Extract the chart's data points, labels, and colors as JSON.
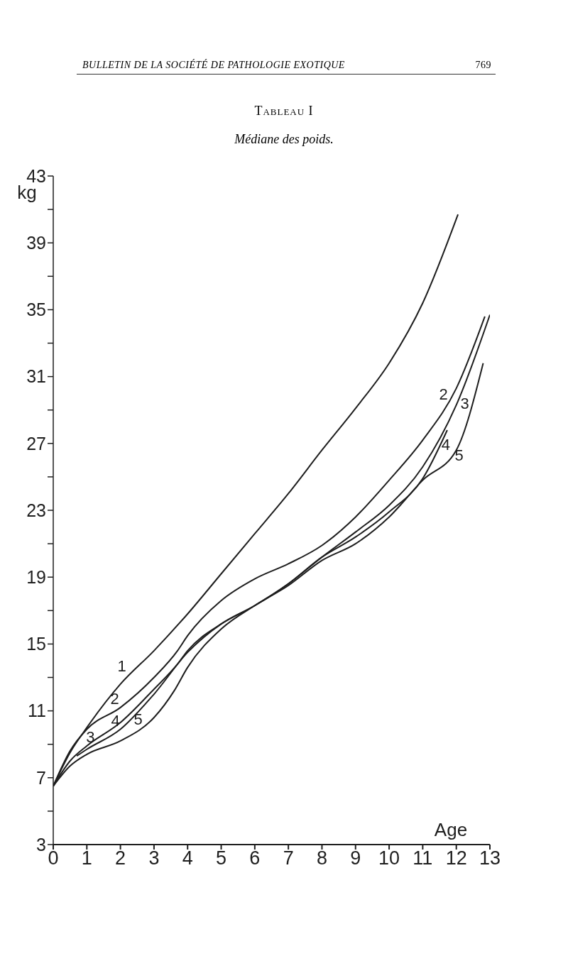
{
  "chart_data": {
    "type": "line",
    "title": "Tableau I",
    "subtitle": "Médiane des poids.",
    "xlabel": "Age",
    "ylabel": "kg",
    "annotations": [
      "BULLETIN DE LA SOCIÉTÉ DE PATHOLOGIE EXOTIQUE",
      "769"
    ],
    "xlim": [
      0,
      13
    ],
    "xticks": [
      0,
      1,
      2,
      3,
      4,
      5,
      6,
      7,
      8,
      9,
      10,
      11,
      12,
      13
    ],
    "ylim": [
      3,
      43
    ],
    "yticks": [
      3,
      {
        "value": 5,
        "label": null
      },
      7,
      {
        "value": 9,
        "label": null
      },
      11,
      {
        "value": 13,
        "label": null
      },
      15,
      {
        "value": 17,
        "label": null
      },
      19,
      {
        "value": 21,
        "label": null
      },
      23,
      {
        "value": 25,
        "label": null
      },
      27,
      {
        "value": 29,
        "label": null
      },
      31,
      {
        "value": 33,
        "label": null
      },
      35,
      {
        "value": 37,
        "label": null
      },
      39,
      {
        "value": 41,
        "label": null
      },
      43
    ],
    "grid": false,
    "legend": false,
    "marker": "none",
    "line_style": "solid",
    "series": [
      {
        "name": "1",
        "color": "#1e1e1e",
        "x": [
          0,
          0.5,
          1,
          2,
          3,
          4,
          5,
          6,
          7,
          8,
          9,
          10,
          11,
          12.05
        ],
        "values": [
          6.5,
          8.5,
          10.0,
          12.6,
          14.6,
          16.8,
          19.2,
          21.6,
          24.0,
          26.6,
          29.1,
          31.8,
          35.4,
          40.7
        ]
      },
      {
        "name": "2",
        "color": "#1e1e1e",
        "x": [
          0,
          0.5,
          1,
          2,
          3,
          3.7,
          4,
          5,
          6,
          7,
          8,
          9,
          10,
          11,
          12,
          12.85
        ],
        "values": [
          6.5,
          8.6,
          9.9,
          11.2,
          13.0,
          14.6,
          15.5,
          17.6,
          18.9,
          19.8,
          20.9,
          22.6,
          24.8,
          27.2,
          30.3,
          34.6
        ]
      },
      {
        "name": "3",
        "color": "#1e1e1e",
        "x": [
          0,
          0.5,
          1,
          2,
          3,
          3.7,
          4,
          5,
          6,
          7,
          8,
          9,
          10,
          11,
          12,
          13
        ],
        "values": [
          6.5,
          8.0,
          8.9,
          10.3,
          12.3,
          13.8,
          14.6,
          16.2,
          17.3,
          18.6,
          20.2,
          21.7,
          23.3,
          25.6,
          29.3,
          34.7
        ]
      },
      {
        "name": "4",
        "color": "#1e1e1e",
        "x": [
          0.7,
          1,
          2,
          3,
          4,
          5,
          6,
          7,
          8,
          9,
          10,
          11,
          11.73
        ],
        "values": [
          8.3,
          8.7,
          9.9,
          12.0,
          14.5,
          16.2,
          17.3,
          18.6,
          20.2,
          21.4,
          22.9,
          24.9,
          27.8
        ]
      },
      {
        "name": "5",
        "color": "#1e1e1e",
        "x": [
          0,
          0.5,
          1,
          2,
          3,
          3.6,
          4,
          5,
          6,
          7,
          8,
          9,
          10,
          11,
          12,
          12.8
        ],
        "values": [
          6.5,
          7.7,
          8.4,
          9.2,
          10.6,
          12.2,
          13.6,
          15.9,
          17.3,
          18.5,
          20.0,
          21.0,
          22.6,
          24.8,
          26.6,
          31.8
        ]
      }
    ]
  }
}
